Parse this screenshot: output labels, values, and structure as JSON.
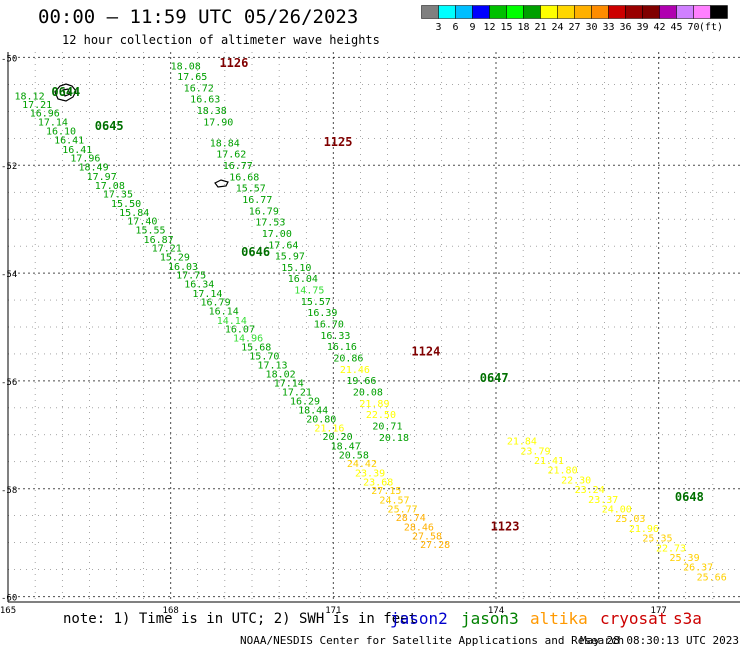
{
  "title": "00:00 – 11:59 UTC 05/26/2023",
  "subtitle": "12 hour collection of altimeter wave heights",
  "legend": {
    "colors": [
      "#808080",
      "#00ffff",
      "#00bfff",
      "#0000ff",
      "#00c000",
      "#00ff00",
      "#00a000",
      "#ffff00",
      "#ffd700",
      "#ffb000",
      "#ff8c00",
      "#cc0000",
      "#990000",
      "#800000",
      "#b000b0",
      "#d080ff",
      "#ff80ff",
      "#000000"
    ],
    "labels": [
      "3",
      "6",
      "9",
      "12",
      "15",
      "18",
      "21",
      "24",
      "27",
      "30",
      "33",
      "36",
      "39",
      "42",
      "45",
      "70"
    ],
    "unit": "(ft)"
  },
  "axes": {
    "x_ticks": [
      "165",
      "168",
      "171",
      "174",
      "177"
    ],
    "y_ticks": [
      "-50",
      "-52",
      "-54",
      "-56",
      "-58",
      "-60"
    ],
    "x_range": [
      165,
      178.5
    ],
    "y_range": [
      -49.9,
      -60.1
    ]
  },
  "note": "note: 1) Time is in UTC; 2) SWH is in feet",
  "missions": [
    {
      "name": "jason2",
      "color": "#0000cc"
    },
    {
      "name": "jason3",
      "color": "#008000"
    },
    {
      "name": "altika",
      "color": "#ff9900"
    },
    {
      "name": "cryosat",
      "color": "#cc0000"
    },
    {
      "name": "s3a",
      "color": "#cc0000"
    }
  ],
  "credit": "NOAA/NESDIS Center for Satellite Applications and Research",
  "timestamp": "May 28 08:30:13 UTC 2023",
  "colors": {
    "green": "#00a000",
    "lightgreen": "#33dd33",
    "yellow": "#ffff00",
    "gold": "#ffd000",
    "orange": "#ffb000",
    "darkgreen": "#007000",
    "darkred": "#800000"
  },
  "track_labels": [
    {
      "text": "1126",
      "lon": 168.9,
      "lat": -50.18,
      "color": "darkred"
    },
    {
      "text": "1125",
      "lon": 170.82,
      "lat": -51.64,
      "color": "darkred"
    },
    {
      "text": "1124",
      "lon": 172.44,
      "lat": -55.53,
      "color": "darkred"
    },
    {
      "text": "1123",
      "lon": 173.9,
      "lat": -58.77,
      "color": "darkred"
    },
    {
      "text": "0644",
      "lon": 165.8,
      "lat": -50.72,
      "color": "darkgreen"
    },
    {
      "text": "0645",
      "lon": 166.6,
      "lat": -51.35,
      "color": "darkgreen"
    },
    {
      "text": "0646",
      "lon": 169.3,
      "lat": -53.68,
      "color": "darkgreen"
    },
    {
      "text": "0647",
      "lon": 173.7,
      "lat": -56.02,
      "color": "darkgreen"
    },
    {
      "text": "0648",
      "lon": 177.3,
      "lat": -58.23,
      "color": "darkgreen"
    }
  ],
  "tracks": [
    {
      "name": "track-0644-0646",
      "points": [
        {
          "lon": 165.12,
          "lat": -50.78,
          "v": "18.12",
          "c": "green"
        },
        {
          "lon": 165.26,
          "lat": -50.94,
          "v": "17.21",
          "c": "green"
        },
        {
          "lon": 165.4,
          "lat": -51.1,
          "v": "16.96",
          "c": "green"
        },
        {
          "lon": 165.55,
          "lat": -51.26,
          "v": "17.14",
          "c": "green"
        },
        {
          "lon": 165.7,
          "lat": -51.43,
          "v": "16.10",
          "c": "green"
        },
        {
          "lon": 165.85,
          "lat": -51.6,
          "v": "16.41",
          "c": "green"
        },
        {
          "lon": 166.0,
          "lat": -51.77,
          "v": "16.41",
          "c": "green"
        },
        {
          "lon": 166.15,
          "lat": -51.93,
          "v": "17.96",
          "c": "green"
        },
        {
          "lon": 166.3,
          "lat": -52.1,
          "v": "18.49",
          "c": "green"
        },
        {
          "lon": 166.45,
          "lat": -52.27,
          "v": "17.97",
          "c": "green"
        },
        {
          "lon": 166.6,
          "lat": -52.44,
          "v": "17.08",
          "c": "green"
        },
        {
          "lon": 166.75,
          "lat": -52.6,
          "v": "17.35",
          "c": "green"
        },
        {
          "lon": 166.9,
          "lat": -52.77,
          "v": "15.50",
          "c": "green"
        },
        {
          "lon": 167.05,
          "lat": -52.94,
          "v": "15.84",
          "c": "green"
        },
        {
          "lon": 167.2,
          "lat": -53.1,
          "v": "17.40",
          "c": "green"
        },
        {
          "lon": 167.35,
          "lat": -53.27,
          "v": "15.55",
          "c": "green"
        },
        {
          "lon": 167.5,
          "lat": -53.44,
          "v": "16.87",
          "c": "green"
        },
        {
          "lon": 167.65,
          "lat": -53.6,
          "v": "17.21",
          "c": "green"
        },
        {
          "lon": 167.8,
          "lat": -53.77,
          "v": "15.29",
          "c": "green"
        },
        {
          "lon": 167.95,
          "lat": -53.94,
          "v": "16.03",
          "c": "green"
        },
        {
          "lon": 168.1,
          "lat": -54.1,
          "v": "17.75",
          "c": "green"
        },
        {
          "lon": 168.25,
          "lat": -54.27,
          "v": "16.34",
          "c": "green"
        },
        {
          "lon": 168.4,
          "lat": -54.44,
          "v": "17.14",
          "c": "green"
        },
        {
          "lon": 168.55,
          "lat": -54.6,
          "v": "16.79",
          "c": "green"
        },
        {
          "lon": 168.7,
          "lat": -54.77,
          "v": "16.14",
          "c": "green"
        },
        {
          "lon": 168.85,
          "lat": -54.94,
          "v": "14.14",
          "c": "lightgreen"
        },
        {
          "lon": 169.0,
          "lat": -55.1,
          "v": "16.07",
          "c": "green"
        },
        {
          "lon": 169.15,
          "lat": -55.27,
          "v": "14.96",
          "c": "lightgreen"
        },
        {
          "lon": 169.3,
          "lat": -55.44,
          "v": "15.68",
          "c": "green"
        },
        {
          "lon": 169.45,
          "lat": -55.6,
          "v": "15.70",
          "c": "green"
        },
        {
          "lon": 169.6,
          "lat": -55.77,
          "v": "17.13",
          "c": "green"
        },
        {
          "lon": 169.75,
          "lat": -55.94,
          "v": "18.02",
          "c": "green"
        },
        {
          "lon": 169.9,
          "lat": -56.1,
          "v": "17.14",
          "c": "green"
        },
        {
          "lon": 170.05,
          "lat": -56.27,
          "v": "17.21",
          "c": "green"
        },
        {
          "lon": 170.2,
          "lat": -56.44,
          "v": "16.29",
          "c": "green"
        },
        {
          "lon": 170.35,
          "lat": -56.6,
          "v": "18.44",
          "c": "green"
        },
        {
          "lon": 170.5,
          "lat": -56.77,
          "v": "20.80",
          "c": "green"
        },
        {
          "lon": 170.65,
          "lat": -56.94,
          "v": "21.16",
          "c": "yellow"
        },
        {
          "lon": 170.8,
          "lat": -57.1,
          "v": "20.20",
          "c": "green"
        },
        {
          "lon": 170.95,
          "lat": -57.27,
          "v": "18.47",
          "c": "green"
        },
        {
          "lon": 171.1,
          "lat": -57.44,
          "v": "20.58",
          "c": "green"
        },
        {
          "lon": 171.25,
          "lat": -57.6,
          "v": "24.42",
          "c": "gold"
        },
        {
          "lon": 171.4,
          "lat": -57.77,
          "v": "23.39",
          "c": "yellow"
        },
        {
          "lon": 171.55,
          "lat": -57.94,
          "v": "23.68",
          "c": "yellow"
        },
        {
          "lon": 171.7,
          "lat": -58.1,
          "v": "27.15",
          "c": "gold"
        },
        {
          "lon": 171.85,
          "lat": -58.27,
          "v": "24.57",
          "c": "gold"
        },
        {
          "lon": 172.0,
          "lat": -58.44,
          "v": "25.77",
          "c": "gold"
        },
        {
          "lon": 172.15,
          "lat": -58.6,
          "v": "28.74",
          "c": "orange"
        },
        {
          "lon": 172.3,
          "lat": -58.77,
          "v": "28.46",
          "c": "orange"
        },
        {
          "lon": 172.45,
          "lat": -58.94,
          "v": "27.58",
          "c": "orange"
        },
        {
          "lon": 172.6,
          "lat": -59.1,
          "v": "27.28",
          "c": "orange"
        }
      ]
    },
    {
      "name": "track-1126-1124",
      "points": [
        {
          "lon": 168.0,
          "lat": -50.22,
          "v": "18.08",
          "c": "green"
        },
        {
          "lon": 168.12,
          "lat": -50.42,
          "v": "17.65",
          "c": "green"
        },
        {
          "lon": 168.24,
          "lat": -50.63,
          "v": "16.72",
          "c": "green"
        },
        {
          "lon": 168.36,
          "lat": -50.84,
          "v": "16.63",
          "c": "green"
        },
        {
          "lon": 168.48,
          "lat": -51.05,
          "v": "18.38",
          "c": "green"
        },
        {
          "lon": 168.6,
          "lat": -51.26,
          "v": "17.90",
          "c": "green"
        },
        {
          "lon": 168.72,
          "lat": -51.65,
          "v": "18.84",
          "c": "green"
        },
        {
          "lon": 168.84,
          "lat": -51.86,
          "v": "17.62",
          "c": "green"
        },
        {
          "lon": 168.96,
          "lat": -52.07,
          "v": "16.77",
          "c": "green"
        },
        {
          "lon": 169.08,
          "lat": -52.28,
          "v": "16.68",
          "c": "green"
        },
        {
          "lon": 169.2,
          "lat": -52.49,
          "v": "15.57",
          "c": "green"
        },
        {
          "lon": 169.32,
          "lat": -52.7,
          "v": "16.77",
          "c": "green"
        },
        {
          "lon": 169.44,
          "lat": -52.91,
          "v": "16.79",
          "c": "green"
        },
        {
          "lon": 169.56,
          "lat": -53.12,
          "v": "17.53",
          "c": "green"
        },
        {
          "lon": 169.68,
          "lat": -53.33,
          "v": "17.00",
          "c": "green"
        },
        {
          "lon": 169.8,
          "lat": -53.54,
          "v": "17.64",
          "c": "green"
        },
        {
          "lon": 169.92,
          "lat": -53.75,
          "v": "15.97",
          "c": "green"
        },
        {
          "lon": 170.04,
          "lat": -53.96,
          "v": "15.10",
          "c": "green"
        },
        {
          "lon": 170.16,
          "lat": -54.17,
          "v": "16.04",
          "c": "green"
        },
        {
          "lon": 170.28,
          "lat": -54.38,
          "v": "14.75",
          "c": "lightgreen"
        },
        {
          "lon": 170.4,
          "lat": -54.59,
          "v": "15.57",
          "c": "green"
        },
        {
          "lon": 170.52,
          "lat": -54.8,
          "v": "16.39",
          "c": "green"
        },
        {
          "lon": 170.64,
          "lat": -55.01,
          "v": "16.70",
          "c": "green"
        },
        {
          "lon": 170.76,
          "lat": -55.22,
          "v": "16.33",
          "c": "green"
        },
        {
          "lon": 170.88,
          "lat": -55.43,
          "v": "16.16",
          "c": "green"
        },
        {
          "lon": 171.0,
          "lat": -55.64,
          "v": "20.86",
          "c": "green"
        },
        {
          "lon": 171.12,
          "lat": -55.85,
          "v": "21.46",
          "c": "yellow"
        },
        {
          "lon": 171.24,
          "lat": -56.06,
          "v": "19.66",
          "c": "green"
        },
        {
          "lon": 171.36,
          "lat": -56.27,
          "v": "20.08",
          "c": "green"
        },
        {
          "lon": 171.48,
          "lat": -56.48,
          "v": "21.89",
          "c": "yellow"
        },
        {
          "lon": 171.6,
          "lat": -56.69,
          "v": "22.50",
          "c": "yellow"
        },
        {
          "lon": 171.72,
          "lat": -56.9,
          "v": "20.71",
          "c": "green"
        },
        {
          "lon": 171.84,
          "lat": -57.11,
          "v": "20.18",
          "c": "green"
        }
      ]
    },
    {
      "name": "track-0647-0648",
      "points": [
        {
          "lon": 174.2,
          "lat": -57.18,
          "v": "21.84",
          "c": "yellow"
        },
        {
          "lon": 174.45,
          "lat": -57.36,
          "v": "23.79",
          "c": "yellow"
        },
        {
          "lon": 174.7,
          "lat": -57.54,
          "v": "21.41",
          "c": "yellow"
        },
        {
          "lon": 174.95,
          "lat": -57.72,
          "v": "21.80",
          "c": "yellow"
        },
        {
          "lon": 175.2,
          "lat": -57.9,
          "v": "22.30",
          "c": "yellow"
        },
        {
          "lon": 175.45,
          "lat": -58.08,
          "v": "23.24",
          "c": "yellow"
        },
        {
          "lon": 175.7,
          "lat": -58.26,
          "v": "23.37",
          "c": "yellow"
        },
        {
          "lon": 175.95,
          "lat": -58.44,
          "v": "24.00",
          "c": "yellow"
        },
        {
          "lon": 176.2,
          "lat": -58.62,
          "v": "25.03",
          "c": "gold"
        },
        {
          "lon": 176.45,
          "lat": -58.8,
          "v": "21.96",
          "c": "yellow"
        },
        {
          "lon": 176.7,
          "lat": -58.98,
          "v": "25.35",
          "c": "gold"
        },
        {
          "lon": 176.95,
          "lat": -59.16,
          "v": "22.73",
          "c": "yellow"
        },
        {
          "lon": 177.2,
          "lat": -59.34,
          "v": "25.39",
          "c": "gold"
        },
        {
          "lon": 177.45,
          "lat": -59.52,
          "v": "26.37",
          "c": "gold"
        },
        {
          "lon": 177.7,
          "lat": -59.7,
          "v": "25.66",
          "c": "gold"
        }
      ]
    }
  ]
}
